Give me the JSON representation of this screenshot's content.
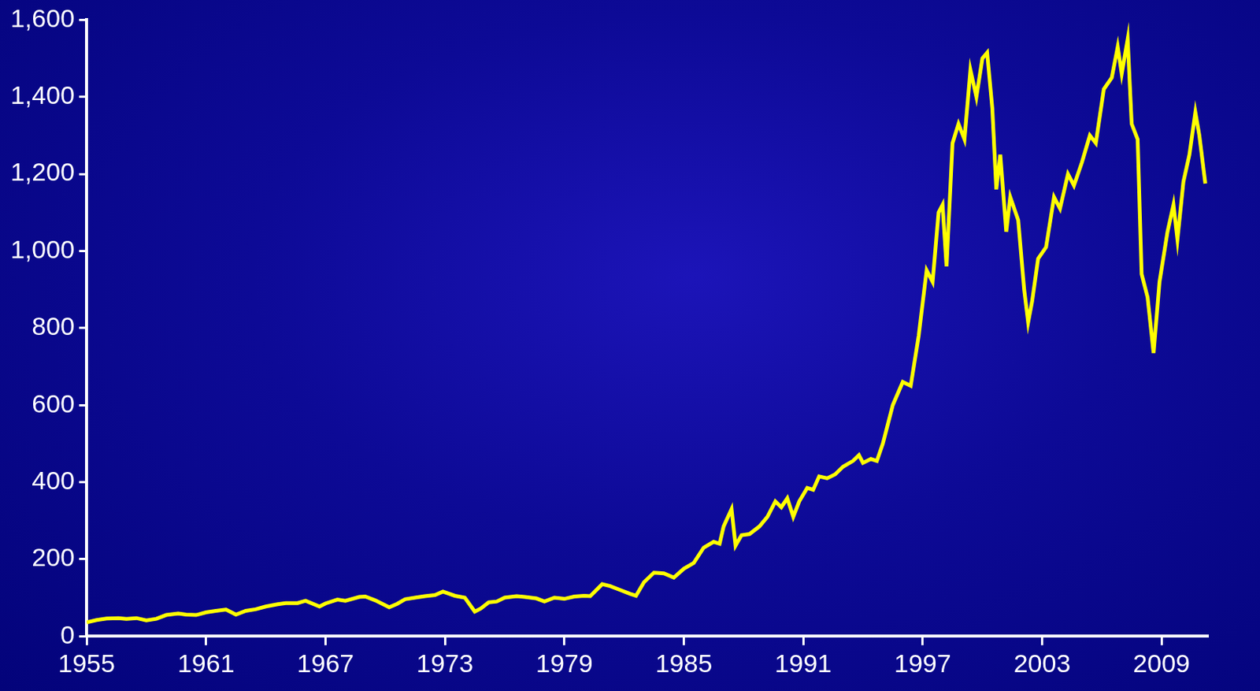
{
  "chart_data": {
    "type": "line",
    "x": [
      1955.0,
      1955.5,
      1956.0,
      1956.6,
      1957.0,
      1957.5,
      1958.0,
      1958.5,
      1959.0,
      1959.6,
      1960.0,
      1960.5,
      1961.0,
      1961.5,
      1962.0,
      1962.5,
      1963.0,
      1963.5,
      1964.0,
      1964.6,
      1965.0,
      1965.6,
      1966.0,
      1966.7,
      1967.0,
      1967.6,
      1968.0,
      1968.7,
      1969.0,
      1969.5,
      1970.2,
      1970.6,
      1971.0,
      1971.5,
      1972.0,
      1972.5,
      1972.9,
      1973.5,
      1974.0,
      1974.5,
      1974.8,
      1975.2,
      1975.6,
      1976.0,
      1976.6,
      1977.0,
      1977.6,
      1978.0,
      1978.5,
      1979.0,
      1979.5,
      1980.0,
      1980.3,
      1980.9,
      1981.3,
      1981.8,
      1982.3,
      1982.6,
      1983.0,
      1983.5,
      1984.0,
      1984.5,
      1985.0,
      1985.5,
      1986.0,
      1986.5,
      1986.8,
      1987.0,
      1987.4,
      1987.6,
      1987.9,
      1988.3,
      1988.8,
      1989.2,
      1989.6,
      1989.9,
      1990.2,
      1990.5,
      1990.8,
      1991.2,
      1991.5,
      1991.8,
      1992.2,
      1992.6,
      1993.0,
      1993.5,
      1993.8,
      1994.0,
      1994.4,
      1994.7,
      1995.0,
      1995.5,
      1996.0,
      1996.4,
      1996.8,
      1997.2,
      1997.5,
      1997.8,
      1998.0,
      1998.2,
      1998.5,
      1998.8,
      1999.1,
      1999.4,
      1999.7,
      2000.0,
      2000.24,
      2000.5,
      2000.7,
      2000.9,
      2001.2,
      2001.4,
      2001.8,
      2002.1,
      2002.3,
      2002.5,
      2002.8,
      2003.2,
      2003.6,
      2003.9,
      2004.3,
      2004.6,
      2005.0,
      2005.4,
      2005.7,
      2006.1,
      2006.5,
      2006.8,
      2007.0,
      2007.3,
      2007.5,
      2007.8,
      2008.0,
      2008.3,
      2008.6,
      2008.9,
      2009.3,
      2009.6,
      2009.8,
      2010.1,
      2010.4,
      2010.7,
      2010.9,
      2011.2
    ],
    "values": [
      36,
      42,
      46,
      47,
      45,
      47,
      41,
      45,
      55,
      59,
      56,
      55,
      62,
      66,
      69,
      56,
      66,
      70,
      77,
      83,
      86,
      86,
      92,
      77,
      85,
      95,
      92,
      102,
      103,
      93,
      75,
      84,
      96,
      100,
      104,
      107,
      116,
      105,
      100,
      64,
      72,
      88,
      90,
      100,
      104,
      102,
      98,
      90,
      100,
      97,
      103,
      105,
      104,
      135,
      130,
      120,
      110,
      105,
      140,
      165,
      163,
      152,
      175,
      190,
      230,
      245,
      240,
      285,
      330,
      235,
      262,
      265,
      285,
      310,
      350,
      335,
      358,
      310,
      350,
      385,
      380,
      415,
      410,
      420,
      440,
      455,
      470,
      450,
      460,
      455,
      500,
      600,
      660,
      650,
      780,
      950,
      920,
      1100,
      1120,
      960,
      1280,
      1330,
      1290,
      1470,
      1400,
      1500,
      1515,
      1370,
      1160,
      1250,
      1050,
      1140,
      1080,
      900,
      815,
      870,
      980,
      1010,
      1140,
      1110,
      1200,
      1170,
      1230,
      1300,
      1280,
      1420,
      1450,
      1530,
      1460,
      1550,
      1330,
      1290,
      940,
      880,
      735,
      920,
      1050,
      1120,
      1030,
      1180,
      1250,
      1360,
      1300,
      1175
    ],
    "color": "#ffff00",
    "xlim": [
      1955,
      2011.3
    ],
    "xticks": [
      1955,
      1961,
      1967,
      1973,
      1979,
      1985,
      1991,
      1997,
      2003,
      2009
    ],
    "ylim": [
      0,
      1600
    ],
    "yticks": [
      0,
      200,
      400,
      600,
      800,
      {
        "value": 1000,
        "label": "1,000"
      },
      {
        "value": 1200,
        "label": "1,200"
      },
      {
        "value": 1400,
        "label": "1,400"
      },
      {
        "value": 1600,
        "label": "1,600"
      }
    ],
    "grid": false
  }
}
